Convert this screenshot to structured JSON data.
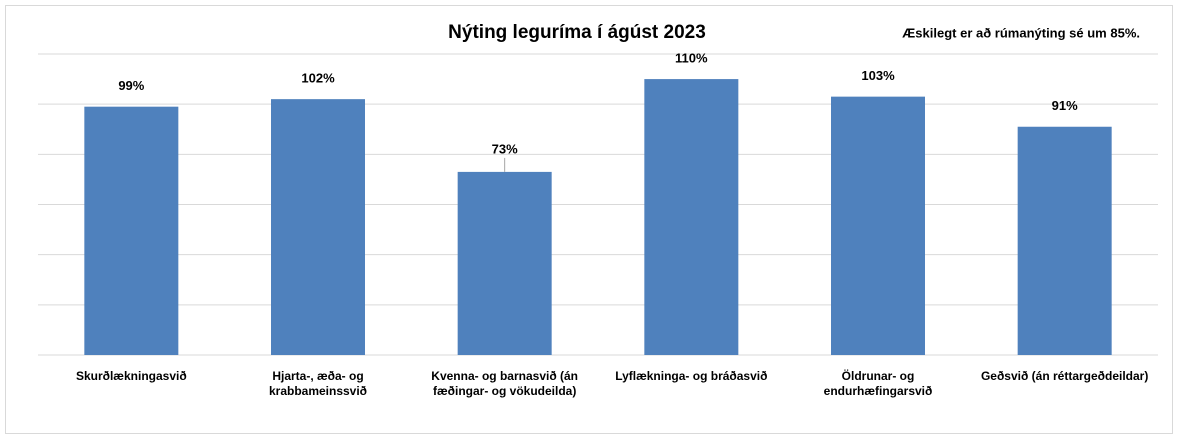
{
  "chart_data": {
    "type": "bar",
    "title": "Nýting leguríma í ágúst 2023",
    "annotation": "Æskilegt er að rúmanýting sé um 85%.",
    "categories": [
      "Skurðlækningasvið",
      "Hjarta-, æða- og krabbameinssvið",
      "Kvenna- og barnasvið (án fæðingar- og vökudeilda)",
      "Lyflækninga- og bráðasvið",
      "Öldrunar- og endurhæfingarsvið",
      "Geðsvið (án réttargeðdeildar)"
    ],
    "values": [
      99,
      102,
      73,
      110,
      103,
      91
    ],
    "value_labels": [
      "99%",
      "102%",
      "73%",
      "110%",
      "103%",
      "91%"
    ],
    "color": "#4f81bd",
    "ylim": [
      0,
      120
    ],
    "yticks": [
      0,
      20,
      40,
      60,
      80,
      100,
      120
    ],
    "grid": true
  }
}
